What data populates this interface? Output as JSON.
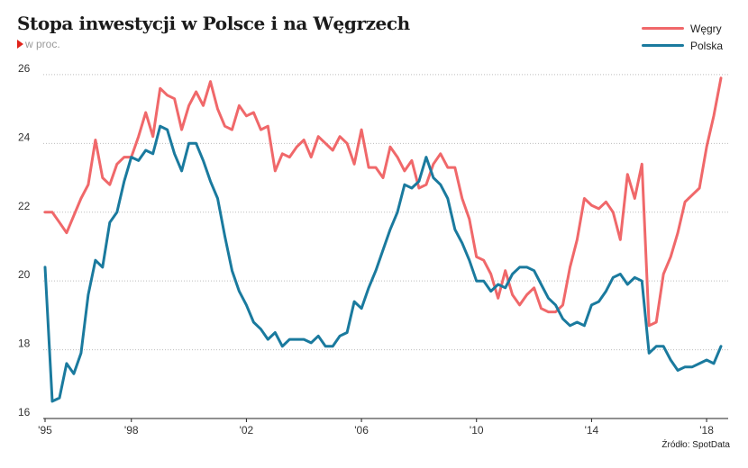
{
  "title": "Stopa inwestycji w Polsce i na Węgrzech",
  "subtitle": "w proc.",
  "source": "Źródło: SpotData",
  "colors": {
    "hungary": "#f0686a",
    "poland": "#1a7a9e",
    "grid": "#bdbdbd",
    "axis": "#222222"
  },
  "chart_data": {
    "type": "line",
    "title": "Stopa inwestycji w Polsce i na Węgrzech",
    "subtitle": "w proc.",
    "xlabel": "",
    "ylabel": "",
    "xlim": [
      1995,
      2018.75
    ],
    "ylim": [
      16,
      26.6
    ],
    "y_ticks": [
      16,
      18,
      20,
      22,
      24,
      26
    ],
    "x_ticks": [
      {
        "value": 1995,
        "label": "'95"
      },
      {
        "value": 1998,
        "label": "'98"
      },
      {
        "value": 2002,
        "label": "'02"
      },
      {
        "value": 2006,
        "label": "'06"
      },
      {
        "value": 2010,
        "label": "'10"
      },
      {
        "value": 2014,
        "label": "'14"
      },
      {
        "value": 2018,
        "label": "'18"
      }
    ],
    "grid": "horizontal dotted",
    "legend_position": "top-right",
    "series": [
      {
        "name": "Węgry",
        "color": "#f0686a",
        "points": [
          [
            1995.0,
            22.0
          ],
          [
            1995.25,
            22.0
          ],
          [
            1995.5,
            21.7
          ],
          [
            1995.75,
            21.4
          ],
          [
            1996.0,
            21.9
          ],
          [
            1996.25,
            22.4
          ],
          [
            1996.5,
            22.8
          ],
          [
            1996.75,
            24.1
          ],
          [
            1997.0,
            23.0
          ],
          [
            1997.25,
            22.8
          ],
          [
            1997.5,
            23.4
          ],
          [
            1997.75,
            23.6
          ],
          [
            1998.0,
            23.6
          ],
          [
            1998.25,
            24.2
          ],
          [
            1998.5,
            24.9
          ],
          [
            1998.75,
            24.2
          ],
          [
            1999.0,
            25.6
          ],
          [
            1999.25,
            25.4
          ],
          [
            1999.5,
            25.3
          ],
          [
            1999.75,
            24.4
          ],
          [
            2000.0,
            25.1
          ],
          [
            2000.25,
            25.5
          ],
          [
            2000.5,
            25.1
          ],
          [
            2000.75,
            25.8
          ],
          [
            2001.0,
            25.0
          ],
          [
            2001.25,
            24.5
          ],
          [
            2001.5,
            24.4
          ],
          [
            2001.75,
            25.1
          ],
          [
            2002.0,
            24.8
          ],
          [
            2002.25,
            24.9
          ],
          [
            2002.5,
            24.4
          ],
          [
            2002.75,
            24.5
          ],
          [
            2003.0,
            23.2
          ],
          [
            2003.25,
            23.7
          ],
          [
            2003.5,
            23.6
          ],
          [
            2003.75,
            23.9
          ],
          [
            2004.0,
            24.1
          ],
          [
            2004.25,
            23.6
          ],
          [
            2004.5,
            24.2
          ],
          [
            2004.75,
            24.0
          ],
          [
            2005.0,
            23.8
          ],
          [
            2005.25,
            24.2
          ],
          [
            2005.5,
            24.0
          ],
          [
            2005.75,
            23.4
          ],
          [
            2006.0,
            24.4
          ],
          [
            2006.25,
            23.3
          ],
          [
            2006.5,
            23.3
          ],
          [
            2006.75,
            23.0
          ],
          [
            2007.0,
            23.9
          ],
          [
            2007.25,
            23.6
          ],
          [
            2007.5,
            23.2
          ],
          [
            2007.75,
            23.5
          ],
          [
            2008.0,
            22.7
          ],
          [
            2008.25,
            22.8
          ],
          [
            2008.5,
            23.4
          ],
          [
            2008.75,
            23.7
          ],
          [
            2009.0,
            23.3
          ],
          [
            2009.25,
            23.3
          ],
          [
            2009.5,
            22.4
          ],
          [
            2009.75,
            21.8
          ],
          [
            2010.0,
            20.7
          ],
          [
            2010.25,
            20.6
          ],
          [
            2010.5,
            20.2
          ],
          [
            2010.75,
            19.5
          ],
          [
            2011.0,
            20.3
          ],
          [
            2011.25,
            19.6
          ],
          [
            2011.5,
            19.3
          ],
          [
            2011.75,
            19.6
          ],
          [
            2012.0,
            19.8
          ],
          [
            2012.25,
            19.2
          ],
          [
            2012.5,
            19.1
          ],
          [
            2012.75,
            19.1
          ],
          [
            2013.0,
            19.3
          ],
          [
            2013.25,
            20.4
          ],
          [
            2013.5,
            21.2
          ],
          [
            2013.75,
            22.4
          ],
          [
            2014.0,
            22.2
          ],
          [
            2014.25,
            22.1
          ],
          [
            2014.5,
            22.3
          ],
          [
            2014.75,
            22.0
          ],
          [
            2015.0,
            21.2
          ],
          [
            2015.25,
            23.1
          ],
          [
            2015.5,
            22.4
          ],
          [
            2015.75,
            23.4
          ],
          [
            2016.0,
            18.7
          ],
          [
            2016.25,
            18.8
          ],
          [
            2016.5,
            20.2
          ],
          [
            2016.75,
            20.7
          ],
          [
            2017.0,
            21.4
          ],
          [
            2017.25,
            22.3
          ],
          [
            2017.5,
            22.5
          ],
          [
            2017.75,
            22.7
          ],
          [
            2018.0,
            23.9
          ],
          [
            2018.25,
            24.8
          ],
          [
            2018.5,
            25.9
          ]
        ]
      },
      {
        "name": "Polska",
        "color": "#1a7a9e",
        "points": [
          [
            1995.0,
            20.4
          ],
          [
            1995.25,
            16.5
          ],
          [
            1995.5,
            16.6
          ],
          [
            1995.75,
            17.6
          ],
          [
            1996.0,
            17.3
          ],
          [
            1996.25,
            17.9
          ],
          [
            1996.5,
            19.6
          ],
          [
            1996.75,
            20.6
          ],
          [
            1997.0,
            20.4
          ],
          [
            1997.25,
            21.7
          ],
          [
            1997.5,
            22.0
          ],
          [
            1997.75,
            22.9
          ],
          [
            1998.0,
            23.6
          ],
          [
            1998.25,
            23.5
          ],
          [
            1998.5,
            23.8
          ],
          [
            1998.75,
            23.7
          ],
          [
            1999.0,
            24.5
          ],
          [
            1999.25,
            24.4
          ],
          [
            1999.5,
            23.7
          ],
          [
            1999.75,
            23.2
          ],
          [
            2000.0,
            24.0
          ],
          [
            2000.25,
            24.0
          ],
          [
            2000.5,
            23.5
          ],
          [
            2000.75,
            22.9
          ],
          [
            2001.0,
            22.4
          ],
          [
            2001.25,
            21.3
          ],
          [
            2001.5,
            20.3
          ],
          [
            2001.75,
            19.7
          ],
          [
            2002.0,
            19.3
          ],
          [
            2002.25,
            18.8
          ],
          [
            2002.5,
            18.6
          ],
          [
            2002.75,
            18.3
          ],
          [
            2003.0,
            18.5
          ],
          [
            2003.25,
            18.1
          ],
          [
            2003.5,
            18.3
          ],
          [
            2003.75,
            18.3
          ],
          [
            2004.0,
            18.3
          ],
          [
            2004.25,
            18.2
          ],
          [
            2004.5,
            18.4
          ],
          [
            2004.75,
            18.1
          ],
          [
            2005.0,
            18.1
          ],
          [
            2005.25,
            18.4
          ],
          [
            2005.5,
            18.5
          ],
          [
            2005.75,
            19.4
          ],
          [
            2006.0,
            19.2
          ],
          [
            2006.25,
            19.8
          ],
          [
            2006.5,
            20.3
          ],
          [
            2006.75,
            20.9
          ],
          [
            2007.0,
            21.5
          ],
          [
            2007.25,
            22.0
          ],
          [
            2007.5,
            22.8
          ],
          [
            2007.75,
            22.7
          ],
          [
            2008.0,
            22.9
          ],
          [
            2008.25,
            23.6
          ],
          [
            2008.5,
            23.0
          ],
          [
            2008.75,
            22.8
          ],
          [
            2009.0,
            22.4
          ],
          [
            2009.25,
            21.5
          ],
          [
            2009.5,
            21.1
          ],
          [
            2009.75,
            20.6
          ],
          [
            2010.0,
            20.0
          ],
          [
            2010.25,
            20.0
          ],
          [
            2010.5,
            19.7
          ],
          [
            2010.75,
            19.9
          ],
          [
            2011.0,
            19.8
          ],
          [
            2011.25,
            20.2
          ],
          [
            2011.5,
            20.4
          ],
          [
            2011.75,
            20.4
          ],
          [
            2012.0,
            20.3
          ],
          [
            2012.25,
            19.9
          ],
          [
            2012.5,
            19.5
          ],
          [
            2012.75,
            19.3
          ],
          [
            2013.0,
            18.9
          ],
          [
            2013.25,
            18.7
          ],
          [
            2013.5,
            18.8
          ],
          [
            2013.75,
            18.7
          ],
          [
            2014.0,
            19.3
          ],
          [
            2014.25,
            19.4
          ],
          [
            2014.5,
            19.7
          ],
          [
            2014.75,
            20.1
          ],
          [
            2015.0,
            20.2
          ],
          [
            2015.25,
            19.9
          ],
          [
            2015.5,
            20.1
          ],
          [
            2015.75,
            20.0
          ],
          [
            2016.0,
            17.9
          ],
          [
            2016.25,
            18.1
          ],
          [
            2016.5,
            18.1
          ],
          [
            2016.75,
            17.7
          ],
          [
            2017.0,
            17.4
          ],
          [
            2017.25,
            17.5
          ],
          [
            2017.5,
            17.5
          ],
          [
            2017.75,
            17.6
          ],
          [
            2018.0,
            17.7
          ],
          [
            2018.25,
            17.6
          ],
          [
            2018.5,
            18.1
          ]
        ]
      }
    ]
  }
}
